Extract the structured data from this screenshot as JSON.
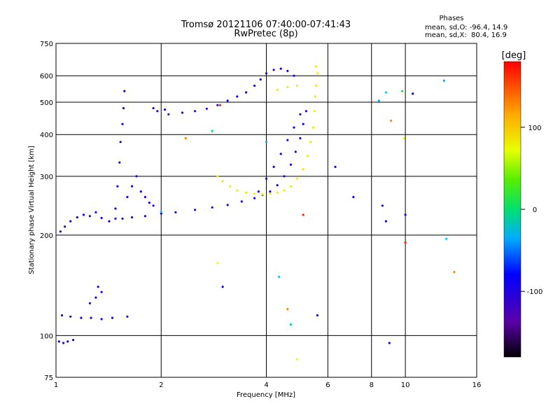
{
  "chart_data": {
    "type": "scatter",
    "title": "Tromsø 20121106 07:40:00-07:41:43",
    "subtitle": "RwPretec (8p)",
    "xlabel": "Frequency [MHz]",
    "ylabel": "Stationary phase Virtual Height [km]",
    "x_scale": "log",
    "y_scale": "log",
    "xlim": [
      1,
      16
    ],
    "ylim": [
      75,
      750
    ],
    "x_ticks": [
      1,
      2,
      4,
      6,
      8,
      10,
      16
    ],
    "y_ticks": [
      75,
      100,
      200,
      300,
      400,
      500,
      600,
      750
    ],
    "grid": true,
    "phases_info": {
      "heading": "Phases",
      "line_o": "mean, sd,O: -96.4, 14.9",
      "line_x": "mean, sd,X:  80.4, 16.9"
    },
    "colorbar": {
      "label": "[deg]",
      "range": [
        -180,
        180
      ],
      "ticks": [
        100,
        0,
        -100
      ]
    },
    "series": [
      {
        "values_note": "o-mode traces (blue, ~-100 deg)",
        "phase": -100,
        "points": [
          [
            1.02,
            96
          ],
          [
            1.05,
            95
          ],
          [
            1.08,
            96
          ],
          [
            1.12,
            97
          ],
          [
            1.04,
            115
          ],
          [
            1.1,
            114
          ],
          [
            1.18,
            113
          ],
          [
            1.26,
            113
          ],
          [
            1.35,
            112
          ],
          [
            1.45,
            113
          ],
          [
            1.6,
            114
          ],
          [
            1.25,
            125
          ],
          [
            1.3,
            130
          ],
          [
            1.35,
            135
          ],
          [
            1.32,
            140
          ],
          [
            1.03,
            205
          ],
          [
            1.06,
            212
          ],
          [
            1.1,
            220
          ],
          [
            1.15,
            226
          ],
          [
            1.2,
            230
          ],
          [
            1.25,
            228
          ],
          [
            1.3,
            234
          ],
          [
            1.35,
            225
          ],
          [
            1.42,
            220
          ],
          [
            1.48,
            224
          ],
          [
            1.55,
            224
          ],
          [
            1.65,
            226
          ],
          [
            1.8,
            228
          ],
          [
            2.0,
            232
          ],
          [
            2.2,
            234
          ],
          [
            2.5,
            238
          ],
          [
            2.8,
            242
          ],
          [
            3.1,
            246
          ],
          [
            3.4,
            252
          ],
          [
            3.7,
            258
          ],
          [
            3.9,
            264
          ],
          [
            4.1,
            270
          ],
          [
            4.3,
            282
          ],
          [
            4.5,
            300
          ],
          [
            4.7,
            325
          ],
          [
            4.85,
            355
          ],
          [
            5.0,
            390
          ],
          [
            5.1,
            430
          ],
          [
            5.2,
            470
          ],
          [
            1.48,
            240
          ],
          [
            1.5,
            280
          ],
          [
            1.52,
            330
          ],
          [
            1.53,
            380
          ],
          [
            1.55,
            430
          ],
          [
            1.56,
            480
          ],
          [
            1.57,
            540
          ],
          [
            1.6,
            260
          ],
          [
            1.65,
            280
          ],
          [
            1.7,
            300
          ],
          [
            1.75,
            270
          ],
          [
            1.8,
            260
          ],
          [
            1.85,
            250
          ],
          [
            1.9,
            245
          ],
          [
            1.9,
            480
          ],
          [
            1.95,
            470
          ],
          [
            2.05,
            475
          ],
          [
            2.1,
            460
          ],
          [
            2.3,
            465
          ],
          [
            2.5,
            470
          ],
          [
            2.7,
            478
          ],
          [
            2.9,
            490
          ],
          [
            3.1,
            505
          ],
          [
            3.3,
            520
          ],
          [
            3.5,
            535
          ],
          [
            3.7,
            560
          ],
          [
            3.85,
            585
          ],
          [
            4.0,
            610
          ],
          [
            4.2,
            625
          ],
          [
            4.4,
            630
          ],
          [
            4.6,
            620
          ],
          [
            4.8,
            600
          ],
          [
            3.8,
            270
          ],
          [
            4.0,
            295
          ],
          [
            4.2,
            320
          ],
          [
            4.4,
            350
          ],
          [
            4.6,
            385
          ],
          [
            4.8,
            420
          ],
          [
            5.0,
            460
          ],
          [
            5.6,
            115
          ],
          [
            6.3,
            320
          ],
          [
            8.6,
            245
          ],
          [
            8.8,
            220
          ],
          [
            9.0,
            95
          ],
          [
            10.0,
            230
          ]
        ]
      },
      {
        "values_note": "x-mode trace (yellow-green, ~80 deg)",
        "phase": 80,
        "points": [
          [
            2.9,
            300
          ],
          [
            3.0,
            290
          ],
          [
            3.15,
            280
          ],
          [
            3.3,
            272
          ],
          [
            3.5,
            268
          ],
          [
            3.7,
            266
          ],
          [
            3.9,
            265
          ],
          [
            4.1,
            266
          ],
          [
            4.3,
            268
          ],
          [
            4.5,
            272
          ],
          [
            4.7,
            280
          ],
          [
            4.9,
            295
          ],
          [
            5.1,
            315
          ],
          [
            5.25,
            345
          ],
          [
            5.35,
            380
          ],
          [
            5.45,
            420
          ],
          [
            5.5,
            470
          ],
          [
            5.52,
            520
          ],
          [
            5.55,
            560
          ],
          [
            5.6,
            610
          ],
          [
            5.55,
            640
          ],
          [
            4.3,
            545
          ],
          [
            4.6,
            555
          ],
          [
            4.9,
            560
          ]
        ]
      },
      {
        "values_note": "isolated points",
        "phase": 0,
        "points": [
          [
            2.0,
            235
          ],
          [
            2.35,
            390
          ],
          [
            2.8,
            410
          ],
          [
            2.9,
            165
          ],
          [
            2.95,
            490
          ],
          [
            3.0,
            140
          ],
          [
            4.0,
            380
          ],
          [
            4.35,
            150
          ],
          [
            4.6,
            120
          ],
          [
            4.7,
            108
          ],
          [
            4.9,
            85
          ],
          [
            5.1,
            230
          ],
          [
            7.1,
            260
          ],
          [
            8.4,
            505
          ],
          [
            8.8,
            535
          ],
          [
            9.1,
            440
          ],
          [
            9.8,
            540
          ],
          [
            9.9,
            390
          ],
          [
            10.0,
            190
          ],
          [
            10.5,
            530
          ],
          [
            12.9,
            580
          ],
          [
            13.1,
            195
          ],
          [
            13.8,
            155
          ]
        ]
      }
    ]
  }
}
